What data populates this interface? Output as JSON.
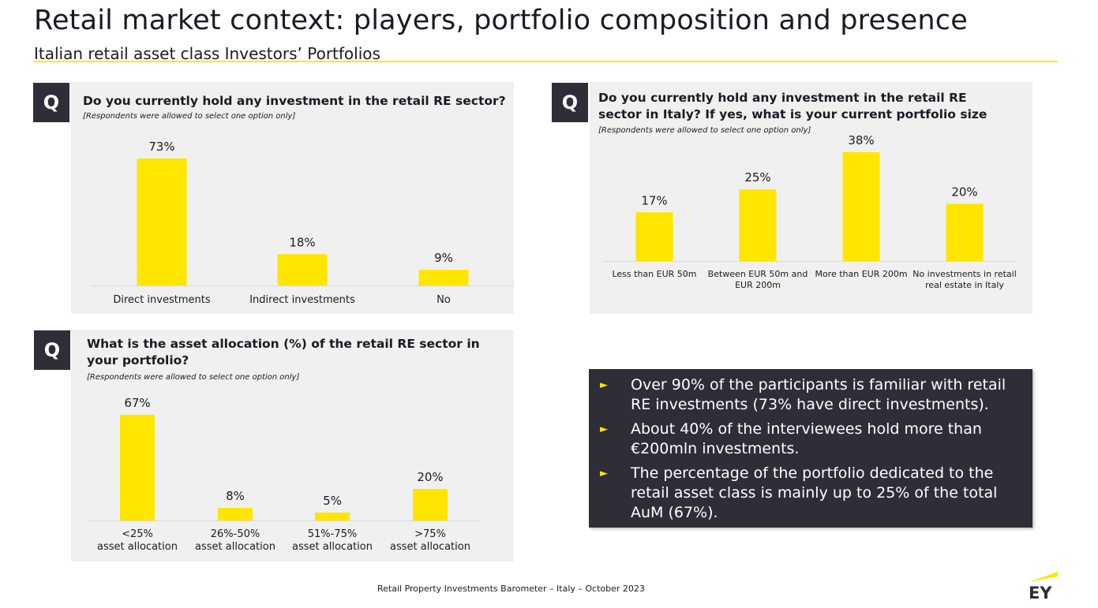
{
  "title": "Retail market context: players, portfolio composition and presence",
  "subtitle": "Italian retail asset class Investors’ Portfolios",
  "panels": {
    "holding": {
      "q_badge": "Q",
      "question": "Do you currently hold any investment in the retail RE sector?",
      "note": "[Respondents were allowed to select one option only]"
    },
    "portfolio_size": {
      "q_badge": "Q",
      "question": "Do you currently hold any investment in the retail RE sector in Italy? If yes, what is your current portfolio size",
      "note": "[Respondents were allowed to select one option only]"
    },
    "allocation": {
      "q_badge": "Q",
      "question": "What is the asset allocation (%) of the retail RE sector in your portfolio?",
      "note": "[Respondents were allowed to select one option only]"
    }
  },
  "summary": {
    "bullets": [
      "Over 90% of the participants is familiar with retail RE investments (73% have direct investments).",
      "About 40% of the interviewees hold more than €200mln investments.",
      "The percentage of the portfolio dedicated to the retail asset class is mainly up to 25% of the total AuM (67%)."
    ]
  },
  "footer": "Retail Property Investments Barometer – Italy – October  2023",
  "logo_text": "EY",
  "colors": {
    "bar": "#ffe600",
    "dark": "#2e2e38",
    "panel": "#f0f0f0",
    "baseline": "#d9d9d9"
  },
  "icons": {
    "bullet": "right-triangle-arrow",
    "logo": "ey-logo"
  },
  "chart_data": [
    {
      "id": "holding",
      "type": "bar",
      "categories": [
        [
          "Direct investments"
        ],
        [
          "Indirect investments"
        ],
        [
          "No"
        ]
      ],
      "values": [
        73,
        18,
        9
      ],
      "labels": [
        "73%",
        "18%",
        "9%"
      ],
      "ylim": [
        0,
        73
      ],
      "grid": false
    },
    {
      "id": "portfolio_size",
      "type": "bar",
      "categories": [
        [
          "Less than EUR 50m"
        ],
        [
          "Between EUR 50m and",
          "EUR 200m"
        ],
        [
          "More than EUR 200m"
        ],
        [
          "No investments in retail",
          "real estate in Italy"
        ]
      ],
      "values": [
        17,
        25,
        38,
        20
      ],
      "labels": [
        "17%",
        "25%",
        "38%",
        "20%"
      ],
      "ylim": [
        0,
        38
      ],
      "grid": false
    },
    {
      "id": "allocation",
      "type": "bar",
      "categories": [
        [
          "<25%",
          "asset allocation"
        ],
        [
          "26%-50%",
          "asset allocation"
        ],
        [
          "51%-75%",
          "asset allocation"
        ],
        [
          ">75%",
          "asset allocation"
        ]
      ],
      "values": [
        67,
        8,
        5,
        20
      ],
      "labels": [
        "67%",
        "8%",
        "5%",
        "20%"
      ],
      "ylim": [
        0,
        67
      ],
      "grid": false
    }
  ]
}
